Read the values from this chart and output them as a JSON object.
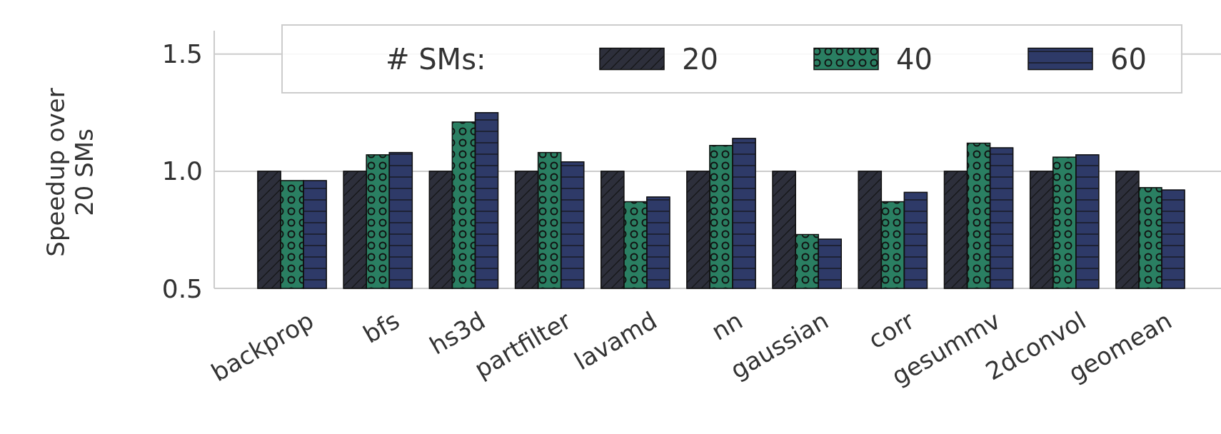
{
  "chart_data": {
    "type": "bar",
    "ylabel": "Speedup over\n20 SMs",
    "legend_title": "# SMs:",
    "legend": "top",
    "grid": "y",
    "categories": [
      "backprop",
      "bfs",
      "hs3d",
      "partfilter",
      "lavamd",
      "nn",
      "gaussian",
      "corr",
      "gesummv",
      "2dconvol",
      "geomean"
    ],
    "series": [
      {
        "name": "20",
        "color": "#2d2f3b",
        "values": [
          1.0,
          1.0,
          1.0,
          1.0,
          1.0,
          1.0,
          1.0,
          1.0,
          1.0,
          1.0,
          1.0
        ]
      },
      {
        "name": "40",
        "color": "#2a7f62",
        "values": [
          0.96,
          1.07,
          1.21,
          1.08,
          0.87,
          1.11,
          0.73,
          0.87,
          1.12,
          1.06,
          0.93
        ]
      },
      {
        "name": "60",
        "color": "#2e3a68",
        "values": [
          0.96,
          1.08,
          1.25,
          1.04,
          0.89,
          1.14,
          0.71,
          0.91,
          1.1,
          1.07,
          0.92
        ]
      }
    ],
    "ylim": [
      0.5,
      1.6
    ],
    "yticks": [
      {
        "value": 0.5,
        "label": "0.5"
      },
      {
        "value": 1.0,
        "label": "1.0"
      },
      {
        "value": 1.5,
        "label": "1.5"
      }
    ]
  }
}
